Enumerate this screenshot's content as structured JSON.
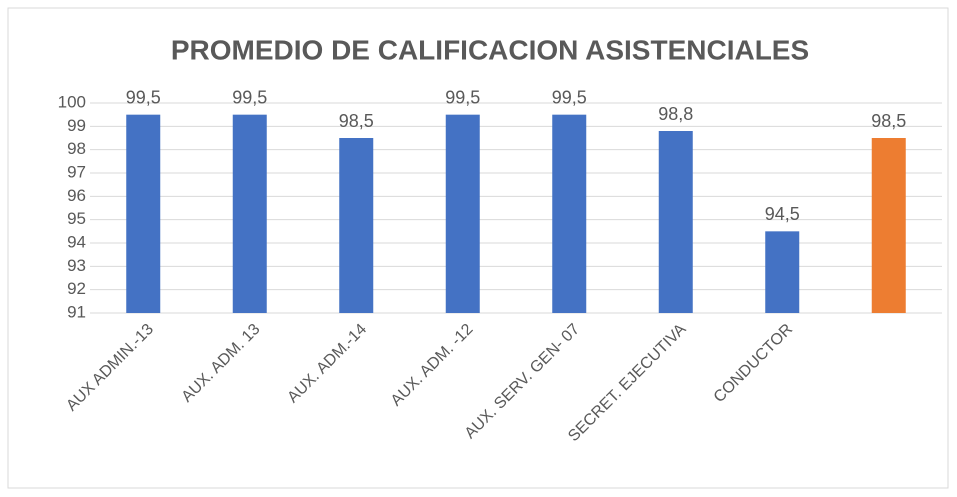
{
  "chart_data": {
    "type": "bar",
    "title": "PROMEDIO DE CALIFICACION  ASISTENCIALES",
    "categories": [
      "AUX ADMIN.-13",
      "AUX. ADM. 13",
      "AUX. ADM.-14",
      "AUX. ADM. -12",
      "AUX. SERV. GEN- 07",
      "SECRET. EJECUTIVA",
      "CONDUCTOR",
      null
    ],
    "values": [
      99.5,
      99.5,
      98.5,
      99.5,
      99.5,
      98.8,
      94.5,
      98.5
    ],
    "value_labels": [
      "99,5",
      "99,5",
      "98,5",
      "99,5",
      "99,5",
      "98,8",
      "94,5",
      "98,5"
    ],
    "colors": [
      "#4472c4",
      "#4472c4",
      "#4472c4",
      "#4472c4",
      "#4472c4",
      "#4472c4",
      "#4472c4",
      "#ed7d31"
    ],
    "ylim": [
      91,
      100
    ],
    "yticks": [
      91,
      92,
      93,
      94,
      95,
      96,
      97,
      98,
      99,
      100
    ],
    "grid": true
  }
}
